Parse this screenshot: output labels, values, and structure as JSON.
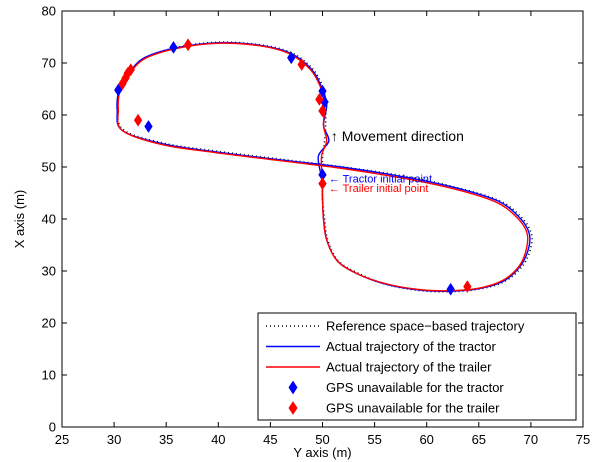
{
  "chart_data": {
    "type": "line",
    "title": "",
    "xlabel": "Y axis (m)",
    "ylabel": "X axis (m)",
    "xlim": [
      25,
      75
    ],
    "ylim": [
      0,
      80
    ],
    "xticks": [
      25,
      30,
      35,
      40,
      45,
      50,
      55,
      60,
      65,
      70,
      75
    ],
    "yticks": [
      0,
      10,
      20,
      30,
      40,
      50,
      60,
      70,
      80
    ],
    "grid": false,
    "legend_position": "bottom-right",
    "series": [
      {
        "name": "Reference space−based trajectory",
        "style": "dotted",
        "color": "#000000",
        "points": [
          [
            50,
            47
          ],
          [
            50,
            44
          ],
          [
            50.2,
            40
          ],
          [
            50.5,
            36
          ],
          [
            51.5,
            32
          ],
          [
            53.5,
            29.5
          ],
          [
            56,
            27.5
          ],
          [
            59,
            26.3
          ],
          [
            62,
            26
          ],
          [
            65,
            26.5
          ],
          [
            67.5,
            28
          ],
          [
            69.2,
            31
          ],
          [
            70,
            34.5
          ],
          [
            70,
            37.5
          ],
          [
            69,
            40.5
          ],
          [
            67,
            43.5
          ],
          [
            63,
            46
          ],
          [
            58,
            48.2
          ],
          [
            52,
            50
          ],
          [
            46,
            51.5
          ],
          [
            40,
            53
          ],
          [
            35,
            54.5
          ],
          [
            31,
            57
          ],
          [
            30.3,
            61
          ],
          [
            30.6,
            65
          ],
          [
            31.5,
            68
          ],
          [
            33,
            71
          ],
          [
            36,
            73
          ],
          [
            40,
            74
          ],
          [
            44,
            73.5
          ],
          [
            47,
            72
          ],
          [
            49,
            69
          ],
          [
            50,
            65.5
          ],
          [
            50.3,
            62
          ],
          [
            50.3,
            58
          ],
          [
            50.2,
            55
          ],
          [
            50,
            52
          ],
          [
            50,
            47
          ]
        ]
      },
      {
        "name": "Actual trajectory of the tractor",
        "style": "solid",
        "color": "#0000ff",
        "points": [
          [
            50,
            47.5
          ],
          [
            50,
            44
          ],
          [
            50.1,
            40
          ],
          [
            50.4,
            36
          ],
          [
            51.4,
            32
          ],
          [
            53.3,
            29.5
          ],
          [
            56,
            27.5
          ],
          [
            59,
            26.4
          ],
          [
            62,
            26.1
          ],
          [
            65,
            26.6
          ],
          [
            67.4,
            28.1
          ],
          [
            69,
            31
          ],
          [
            69.8,
            34.5
          ],
          [
            69.8,
            37.5
          ],
          [
            68.8,
            40.5
          ],
          [
            66.8,
            43.5
          ],
          [
            62.8,
            46
          ],
          [
            57.8,
            48.1
          ],
          [
            51.8,
            50
          ],
          [
            45.8,
            51.4
          ],
          [
            39.8,
            52.9
          ],
          [
            34.8,
            54.4
          ],
          [
            30.8,
            57
          ],
          [
            30.3,
            61
          ],
          [
            30.5,
            65
          ],
          [
            31.4,
            68
          ],
          [
            32.9,
            71
          ],
          [
            35.9,
            72.9
          ],
          [
            40,
            73.9
          ],
          [
            44,
            73.4
          ],
          [
            46.9,
            71.9
          ],
          [
            48.9,
            68.9
          ],
          [
            49.9,
            65.4
          ],
          [
            50.4,
            62
          ],
          [
            50.1,
            58
          ],
          [
            50.6,
            55
          ],
          [
            49.6,
            52
          ],
          [
            50,
            47.5
          ]
        ]
      },
      {
        "name": "Actual trajectory of the trailer",
        "style": "solid",
        "color": "#ff0000",
        "points": [
          [
            50,
            47
          ],
          [
            50,
            44
          ],
          [
            50.1,
            40
          ],
          [
            50.4,
            36
          ],
          [
            51.4,
            32
          ],
          [
            53.3,
            29.5
          ],
          [
            56,
            27.6
          ],
          [
            59,
            26.5
          ],
          [
            62,
            26.2
          ],
          [
            65,
            26.7
          ],
          [
            67.3,
            28.2
          ],
          [
            68.9,
            31
          ],
          [
            69.6,
            34.5
          ],
          [
            69.6,
            37.5
          ],
          [
            68.6,
            40.4
          ],
          [
            66.6,
            43.3
          ],
          [
            62.6,
            45.8
          ],
          [
            57.6,
            47.9
          ],
          [
            51.6,
            49.8
          ],
          [
            45.6,
            51.3
          ],
          [
            39.6,
            52.8
          ],
          [
            34.6,
            54.3
          ],
          [
            30.8,
            57
          ],
          [
            30.4,
            61
          ],
          [
            30.6,
            65
          ],
          [
            31.5,
            68
          ],
          [
            33,
            70.9
          ],
          [
            36,
            72.8
          ],
          [
            40,
            73.8
          ],
          [
            44,
            73.3
          ],
          [
            46.8,
            71.8
          ],
          [
            48.8,
            68.8
          ],
          [
            49.8,
            65.4
          ],
          [
            50.2,
            62
          ],
          [
            50.1,
            58
          ],
          [
            50.4,
            55
          ],
          [
            49.9,
            52
          ],
          [
            50,
            47
          ]
        ]
      },
      {
        "name": "GPS unavailable for the tractor",
        "style": "marker",
        "marker": "diamond",
        "color": "#0000ff",
        "points": [
          [
            30.4,
            64.8
          ],
          [
            33.3,
            57.8
          ],
          [
            35.7,
            73
          ],
          [
            47,
            71
          ],
          [
            50,
            64.6
          ],
          [
            50.2,
            62.5
          ],
          [
            50,
            48.5
          ],
          [
            62.3,
            26.5
          ]
        ]
      },
      {
        "name": "GPS unavailable for the trailer",
        "style": "marker",
        "marker": "diamond",
        "color": "#ff0000",
        "points": [
          [
            30.8,
            66
          ],
          [
            31.1,
            67.1
          ],
          [
            31.3,
            68
          ],
          [
            31.6,
            68.7
          ],
          [
            32.3,
            59
          ],
          [
            37.1,
            73.5
          ],
          [
            48,
            69.7
          ],
          [
            49.7,
            63
          ],
          [
            50,
            60.8
          ],
          [
            50,
            46.8
          ],
          [
            63.9,
            27
          ]
        ]
      }
    ],
    "annotations": [
      {
        "text": "↑  Movement direction",
        "x": 50.8,
        "y": 55,
        "color": "#000000"
      },
      {
        "text": "← Tractor initial point",
        "x": 50.6,
        "y": 47,
        "color": "#0000ff"
      },
      {
        "text": "← Trailer initial point",
        "x": 50.6,
        "y": 45.2,
        "color": "#ff0000"
      }
    ]
  }
}
